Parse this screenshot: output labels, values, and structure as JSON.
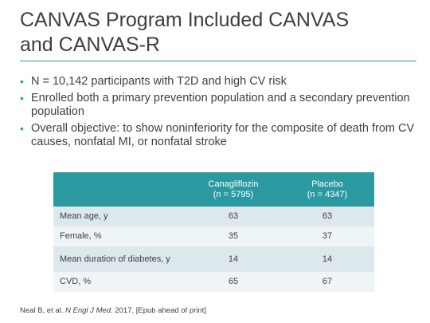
{
  "slide": {
    "title_line1": "CANVAS Program Included CANVAS",
    "title_line2": "and CANVAS-R"
  },
  "bullets": [
    "N = 10,142 participants with T2D and high CV risk",
    "Enrolled both a primary prevention population and a secondary prevention population",
    "Overall objective: to show noninferiority for the composite of death from CV causes, nonfatal MI, or nonfatal stroke"
  ],
  "table": {
    "columns": [
      {
        "line1": "Canagliflozin",
        "line2": "(n = 5795)"
      },
      {
        "line1": "Placebo",
        "line2": "(n = 4347)"
      }
    ],
    "rows": [
      {
        "label": "Mean age, y",
        "values": [
          "63",
          "63"
        ]
      },
      {
        "label": "Female, %",
        "values": [
          "35",
          "37"
        ]
      },
      {
        "label": "Mean duration of diabetes, y",
        "values": [
          "14",
          "14"
        ]
      },
      {
        "label": "CVD, %",
        "values": [
          "65",
          "67"
        ]
      }
    ]
  },
  "footnote": {
    "authors": "Neal B, et al. ",
    "journal": "N Engl J Med",
    "rest": ". 2017. [Epub ahead of print]"
  },
  "colors": {
    "accent": "#2aa3a8",
    "header": "#2a9aa0",
    "row_dark": "#dde8ec",
    "row_light": "#eff4f6"
  }
}
